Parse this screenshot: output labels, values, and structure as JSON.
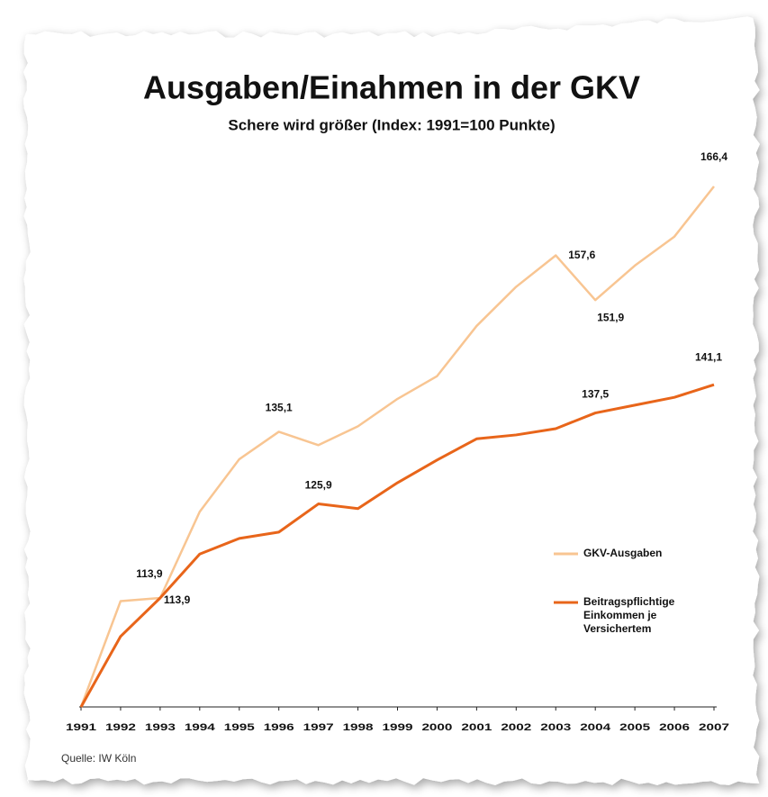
{
  "chart_data": {
    "type": "line",
    "title": "Ausgaben/Einahmen in der GKV",
    "subtitle": "Schere wird größer (Index: 1991=100 Punkte)",
    "source": "Quelle: IW Köln",
    "categories": [
      "1991",
      "1992",
      "1993",
      "1994",
      "1995",
      "1996",
      "1997",
      "1998",
      "1999",
      "2000",
      "2001",
      "2002",
      "2003",
      "2004",
      "2005",
      "2006",
      "2007"
    ],
    "series": [
      {
        "name": "GKV-Ausgaben",
        "color": "#f8c592",
        "values": [
          100,
          113.5,
          113.9,
          124.9,
          131.6,
          135.1,
          133.4,
          135.8,
          139.3,
          142.2,
          148.6,
          153.6,
          157.6,
          151.9,
          156.3,
          160.0,
          166.4
        ],
        "value_labels": [
          null,
          null,
          "113,9",
          null,
          null,
          "135,1",
          null,
          null,
          null,
          null,
          null,
          null,
          "157,6",
          "151,9",
          null,
          null,
          "166,4"
        ]
      },
      {
        "name": "Beitragspflichtige Einkommen je Versichertem",
        "color": "#e8651a",
        "values": [
          100,
          109.0,
          113.9,
          119.5,
          121.5,
          122.3,
          125.9,
          125.3,
          128.6,
          131.5,
          134.2,
          134.7,
          135.5,
          137.5,
          138.5,
          139.5,
          141.1
        ],
        "value_labels": [
          null,
          null,
          "113,9",
          null,
          null,
          null,
          "125,9",
          null,
          null,
          null,
          null,
          null,
          null,
          "137,5",
          null,
          null,
          "141,1"
        ]
      }
    ]
  }
}
